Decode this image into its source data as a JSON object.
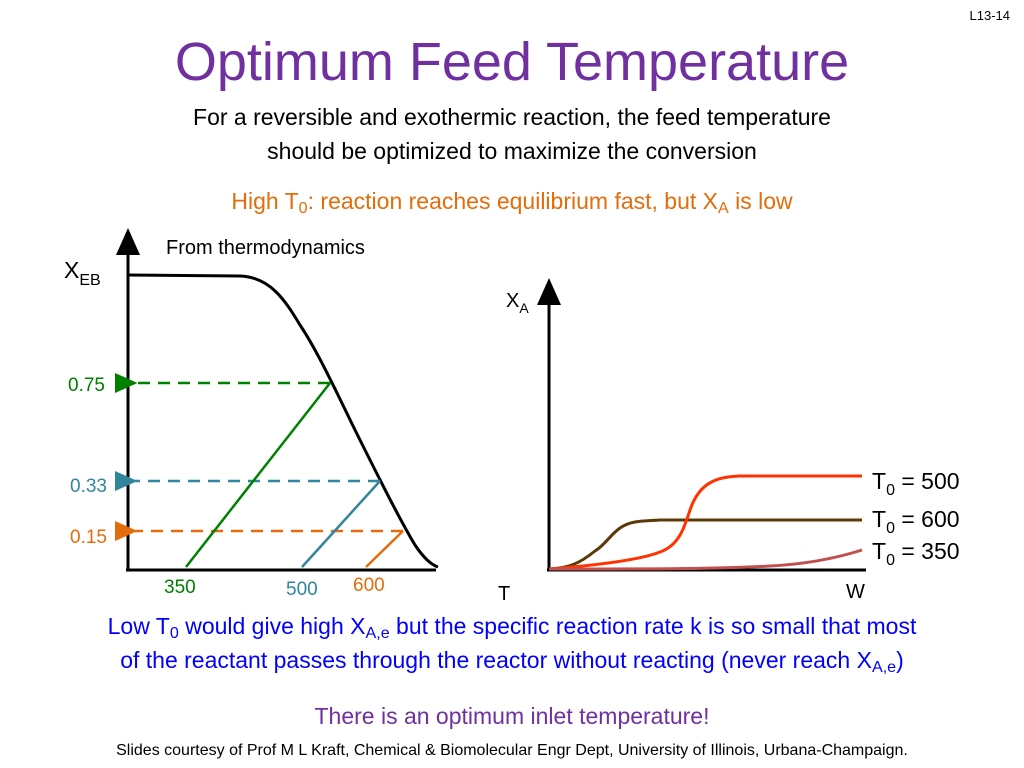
{
  "slide": {
    "number": "L13-14",
    "title": "Optimum Feed Temperature",
    "subtitle_line1": "For a reversible and exothermic reaction, the feed temperature",
    "subtitle_line2": "should be optimized to maximize the conversion",
    "high_t0": {
      "part1": "High T",
      "sub1": "0",
      "part2": ": reaction reaches equilibrium fast, but X",
      "sub2": "A",
      "part3": " is low"
    },
    "from_thermo": "From thermodynamics",
    "low_t0": {
      "part1": "Low T",
      "sub1": "0",
      "part2": " would give high X",
      "sub2": "A,e",
      "part3": " but the specific reaction rate k is so small that most",
      "part4": "of the reactant passes through the reactor without reacting (never reach X",
      "sub3": "A,e",
      "part5": ")"
    },
    "optimum": "There is an optimum inlet temperature!",
    "credit": "Slides courtesy of Prof M L Kraft, Chemical & Biomolecular Engr Dept, University of Illinois, Urbana-Champaign."
  },
  "colors": {
    "title": "#7030a0",
    "subtitle": "#000000",
    "orange": "#e46c0a",
    "blue_text": "#0000ff",
    "green": "#008000",
    "teal": "#31859c",
    "brown": "#5c3a08",
    "red": "#ff3300",
    "pink": "#c0504d"
  },
  "left_plot": {
    "y_label_main": "X",
    "y_label_sub": "EB",
    "x_label": "T",
    "y_ticks": [
      "0.75",
      "0.33",
      "0.15"
    ],
    "x_ticks": [
      "350",
      "500",
      "600"
    ]
  },
  "right_plot": {
    "y_label_main": "X",
    "y_label_sub": "A",
    "x_label": "W",
    "curves": [
      {
        "main": "T",
        "sub": "0",
        "value": " = 500"
      },
      {
        "main": "T",
        "sub": "0",
        "value": " = 600"
      },
      {
        "main": "T",
        "sub": "0",
        "value": " = 350"
      }
    ]
  }
}
